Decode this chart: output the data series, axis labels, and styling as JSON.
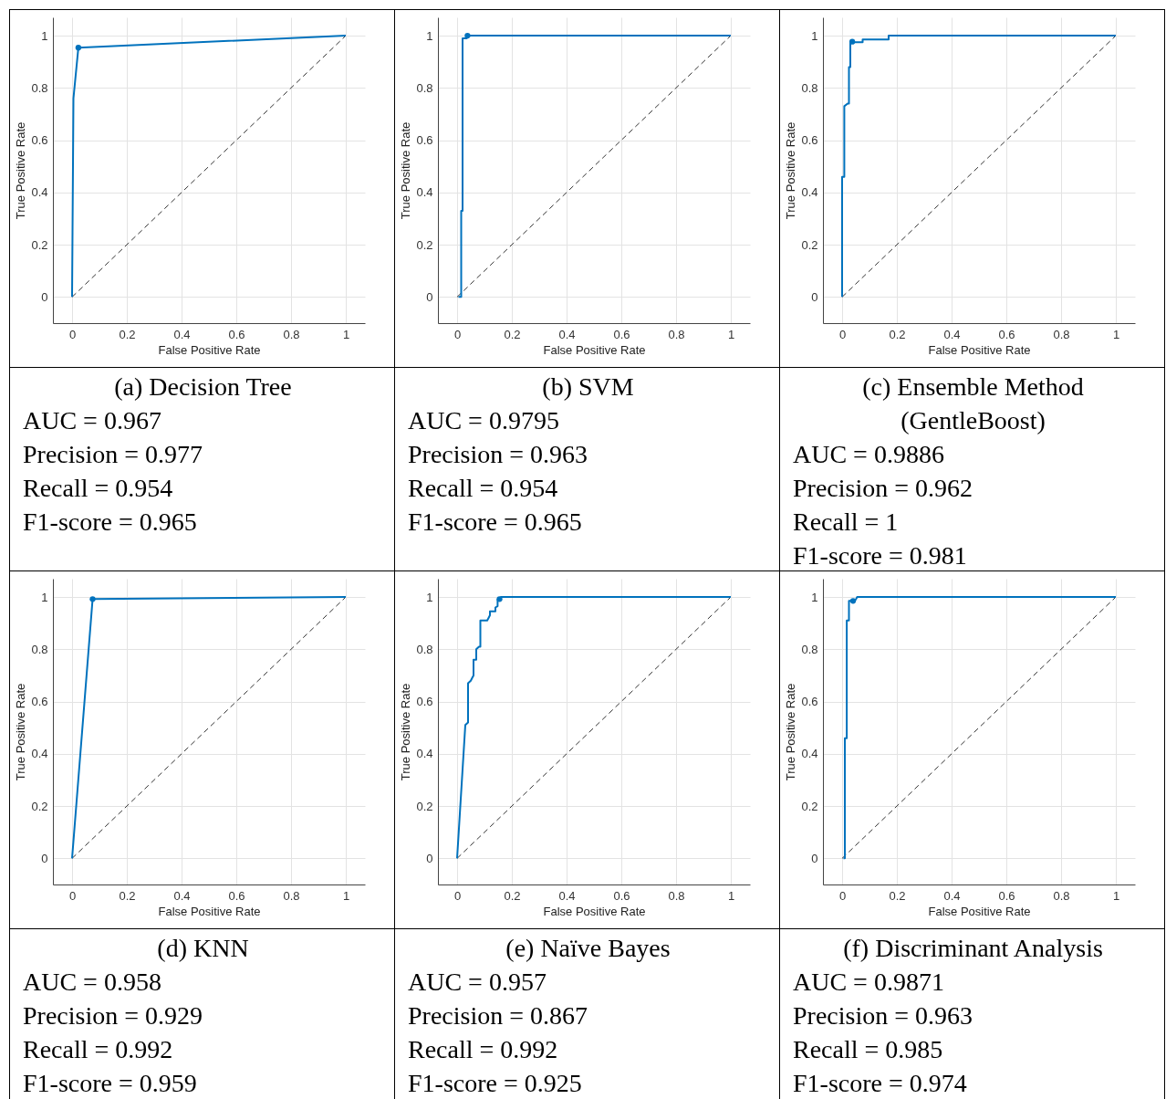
{
  "chart_data": [
    {
      "type": "line",
      "title": "(a) Decision Tree",
      "annotations": [
        "AUC = 0.967",
        "Precision = 0.977",
        "Recall = 0.954",
        "F1-score = 0.965"
      ],
      "xlabel": "False Positive Rate",
      "ylabel": "True Positive Rate",
      "xlim": [
        -0.07,
        1.07
      ],
      "ylim": [
        -0.1,
        1.07
      ],
      "xticks": [
        0,
        0.2,
        0.4,
        0.6,
        0.8,
        1
      ],
      "yticks": [
        0,
        0.2,
        0.4,
        0.6,
        0.8,
        1
      ],
      "grid": true,
      "series": [
        {
          "color": "#333333",
          "line_style": "dashed",
          "x": [
            0,
            1
          ],
          "values": [
            0,
            1
          ]
        },
        {
          "color": "#0072bd",
          "line_style": "solid",
          "x": [
            0,
            0.005,
            0.023,
            1
          ],
          "values": [
            0,
            0.76,
            0.954,
            1
          ]
        },
        {
          "type": "scatter",
          "marker": "circle",
          "color": "#0072bd",
          "x": [
            0.023
          ],
          "values": [
            0.954
          ]
        }
      ]
    },
    {
      "type": "line",
      "title": "(b) SVM",
      "annotations": [
        "AUC = 0.9795",
        "Precision = 0.963",
        "Recall = 0.954",
        "F1-score = 0.965"
      ],
      "xlabel": "False Positive Rate",
      "ylabel": "True Positive Rate",
      "xlim": [
        -0.07,
        1.07
      ],
      "ylim": [
        -0.1,
        1.07
      ],
      "xticks": [
        0,
        0.2,
        0.4,
        0.6,
        0.8,
        1
      ],
      "yticks": [
        0,
        0.2,
        0.4,
        0.6,
        0.8,
        1
      ],
      "grid": true,
      "series": [
        {
          "color": "#333333",
          "line_style": "dashed",
          "x": [
            0,
            1
          ],
          "values": [
            0,
            1
          ]
        },
        {
          "color": "#0072bd",
          "line_style": "solid",
          "x": [
            0.005,
            0.015,
            0.015,
            0.02,
            0.02,
            0.035,
            0.035,
            1
          ],
          "values": [
            0,
            0,
            0.33,
            0.33,
            0.99,
            0.99,
            1,
            1
          ]
        },
        {
          "type": "scatter",
          "marker": "circle",
          "color": "#0072bd",
          "x": [
            0.038
          ],
          "values": [
            1
          ]
        }
      ]
    },
    {
      "type": "line",
      "title": "(c) Ensemble Method (GentleBoost)",
      "annotations": [
        "AUC = 0.9886",
        "Precision = 0.962",
        "Recall = 1",
        "F1-score = 0.981"
      ],
      "xlabel": "False Positive Rate",
      "ylabel": "True Positive Rate",
      "xlim": [
        -0.07,
        1.07
      ],
      "ylim": [
        -0.1,
        1.07
      ],
      "xticks": [
        0,
        0.2,
        0.4,
        0.6,
        0.8,
        1
      ],
      "yticks": [
        0,
        0.2,
        0.4,
        0.6,
        0.8,
        1
      ],
      "grid": true,
      "series": [
        {
          "color": "#333333",
          "line_style": "dashed",
          "x": [
            0,
            1
          ],
          "values": [
            0,
            1
          ]
        },
        {
          "color": "#0072bd",
          "line_style": "solid",
          "x": [
            0,
            0,
            0.008,
            0.008,
            0.02,
            0.025,
            0.025,
            0.03,
            0.03,
            0.04,
            0.04,
            0.075,
            0.075,
            0.17,
            0.17,
            1
          ],
          "values": [
            0,
            0.46,
            0.46,
            0.73,
            0.74,
            0.74,
            0.88,
            0.88,
            0.97,
            0.98,
            0.975,
            0.975,
            0.985,
            0.985,
            1,
            1
          ]
        },
        {
          "type": "scatter",
          "marker": "circle",
          "color": "#0072bd",
          "x": [
            0.037
          ],
          "values": [
            0.977
          ]
        }
      ]
    },
    {
      "type": "line",
      "title": "(d) KNN",
      "annotations": [
        "AUC = 0.958",
        "Precision = 0.929",
        "Recall = 0.992",
        "F1-score = 0.959"
      ],
      "xlabel": "False Positive Rate",
      "ylabel": "True Positive Rate",
      "xlim": [
        -0.07,
        1.07
      ],
      "ylim": [
        -0.1,
        1.07
      ],
      "xticks": [
        0,
        0.2,
        0.4,
        0.6,
        0.8,
        1
      ],
      "yticks": [
        0,
        0.2,
        0.4,
        0.6,
        0.8,
        1
      ],
      "grid": true,
      "series": [
        {
          "color": "#333333",
          "line_style": "dashed",
          "x": [
            0,
            1
          ],
          "values": [
            0,
            1
          ]
        },
        {
          "color": "#0072bd",
          "line_style": "solid",
          "x": [
            0,
            0.075,
            1
          ],
          "values": [
            0,
            0.992,
            1
          ]
        },
        {
          "type": "scatter",
          "marker": "circle",
          "color": "#0072bd",
          "x": [
            0.075
          ],
          "values": [
            0.992
          ]
        }
      ]
    },
    {
      "type": "line",
      "title": "(e) Naïve Bayes",
      "annotations": [
        "AUC = 0.957",
        "Precision = 0.867",
        "Recall = 0.992",
        "F1-score = 0.925"
      ],
      "xlabel": "False Positive Rate",
      "ylabel": "True Positive Rate",
      "xlim": [
        -0.07,
        1.07
      ],
      "ylim": [
        -0.1,
        1.07
      ],
      "xticks": [
        0,
        0.2,
        0.4,
        0.6,
        0.8,
        1
      ],
      "yticks": [
        0,
        0.2,
        0.4,
        0.6,
        0.8,
        1
      ],
      "grid": true,
      "series": [
        {
          "color": "#333333",
          "line_style": "dashed",
          "x": [
            0,
            1
          ],
          "values": [
            0,
            1
          ]
        },
        {
          "color": "#0072bd",
          "line_style": "solid",
          "x": [
            0,
            0.03,
            0.04,
            0.04,
            0.05,
            0.055,
            0.06,
            0.06,
            0.07,
            0.07,
            0.08,
            0.085,
            0.085,
            0.11,
            0.115,
            0.12,
            0.12,
            0.14,
            0.14,
            0.148,
            0.148,
            0.155,
            0.16,
            1
          ],
          "values": [
            0,
            0.51,
            0.52,
            0.67,
            0.68,
            0.69,
            0.7,
            0.76,
            0.76,
            0.8,
            0.81,
            0.81,
            0.91,
            0.91,
            0.92,
            0.93,
            0.945,
            0.945,
            0.96,
            0.965,
            0.99,
            0.99,
            1,
            1
          ]
        },
        {
          "type": "scatter",
          "marker": "circle",
          "color": "#0072bd",
          "x": [
            0.155
          ],
          "values": [
            0.992
          ]
        }
      ]
    },
    {
      "type": "line",
      "title": "(f) Discriminant Analysis",
      "annotations": [
        "AUC = 0.9871",
        "Precision = 0.963",
        "Recall = 0.985",
        "F1-score = 0.974"
      ],
      "xlabel": "False Positive Rate",
      "ylabel": "True Positive Rate",
      "xlim": [
        -0.07,
        1.07
      ],
      "ylim": [
        -0.1,
        1.07
      ],
      "xticks": [
        0,
        0.2,
        0.4,
        0.6,
        0.8,
        1
      ],
      "yticks": [
        0,
        0.2,
        0.4,
        0.6,
        0.8,
        1
      ],
      "grid": true,
      "series": [
        {
          "color": "#333333",
          "line_style": "dashed",
          "x": [
            0,
            1
          ],
          "values": [
            0,
            1
          ]
        },
        {
          "color": "#0072bd",
          "line_style": "solid",
          "x": [
            0.005,
            0.01,
            0.01,
            0.017,
            0.017,
            0.025,
            0.025,
            0.04,
            0.05,
            0.055,
            1
          ],
          "values": [
            0,
            0,
            0.46,
            0.46,
            0.91,
            0.91,
            0.985,
            0.985,
            0.99,
            1,
            1
          ]
        },
        {
          "type": "scatter",
          "marker": "circle",
          "color": "#0072bd",
          "x": [
            0.04
          ],
          "values": [
            0.985
          ]
        }
      ]
    }
  ]
}
